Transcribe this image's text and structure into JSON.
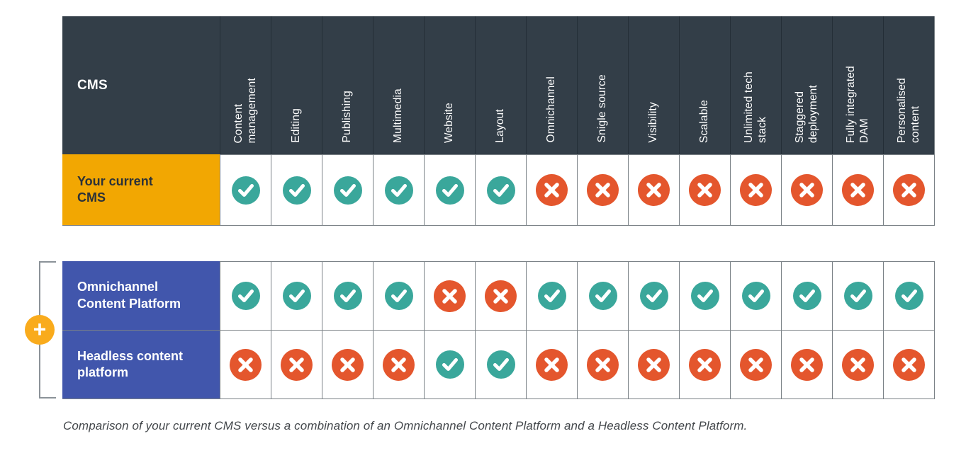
{
  "header": {
    "corner_label": "CMS",
    "columns": [
      "Content\nmanagement",
      "Editing",
      "Publishing",
      "Multimedia",
      "Website",
      "Layout",
      "Omnichannel",
      "Snigle source",
      "Visibility",
      "Scalable",
      "Unlimited tech\nstack",
      "Staggered\ndeployment",
      "Fully integrated\nDAM",
      "Personalised\ncontent"
    ]
  },
  "chart_data": {
    "type": "table",
    "title": "CMS feature comparison matrix",
    "categories": [
      "Content management",
      "Editing",
      "Publishing",
      "Multimedia",
      "Website",
      "Layout",
      "Omnichannel",
      "Snigle source",
      "Visibility",
      "Scalable",
      "Unlimited tech stack",
      "Staggered deployment",
      "Fully integrated DAM",
      "Personalised content"
    ],
    "series": [
      {
        "name": "Your current CMS",
        "values": [
          "yes",
          "yes",
          "yes",
          "yes",
          "yes",
          "yes",
          "no",
          "no",
          "no",
          "no",
          "no",
          "no",
          "no",
          "no"
        ]
      },
      {
        "name": "Omnichannel Content Platform",
        "values": [
          "yes",
          "yes",
          "yes",
          "yes",
          "no",
          "no",
          "yes",
          "yes",
          "yes",
          "yes",
          "yes",
          "yes",
          "yes",
          "yes"
        ]
      },
      {
        "name": "Headless content platform",
        "values": [
          "no",
          "no",
          "no",
          "no",
          "yes",
          "yes",
          "no",
          "no",
          "no",
          "no",
          "no",
          "no",
          "no",
          "no"
        ]
      }
    ]
  },
  "current_table": {
    "rows": [
      {
        "label": "Your current\nCMS",
        "theme": "orange",
        "values": [
          "check",
          "check",
          "check",
          "check",
          "check",
          "check",
          "cross",
          "cross",
          "cross",
          "cross",
          "cross",
          "cross",
          "cross",
          "cross"
        ]
      }
    ]
  },
  "combo_table": {
    "plus_symbol": "+",
    "rows": [
      {
        "label": "Omnichannel\nContent Platform",
        "theme": "blue",
        "values": [
          "check",
          "check",
          "check",
          "check",
          "cross",
          "cross",
          "check",
          "check",
          "check",
          "check",
          "check",
          "check",
          "check",
          "check"
        ]
      },
      {
        "label": "Headless content\nplatform",
        "theme": "blue",
        "values": [
          "cross",
          "cross",
          "cross",
          "cross",
          "check",
          "check",
          "cross",
          "cross",
          "cross",
          "cross",
          "cross",
          "cross",
          "cross",
          "cross"
        ]
      }
    ]
  },
  "caption": "Comparison of your current CMS versus a combination of an Omnichannel Content Platform and a Headless Content Platform.",
  "colors": {
    "header_bg": "#333e48",
    "orange": "#f2a702",
    "blue": "#4156ac",
    "check": "#3aa79b",
    "cross": "#e4562d",
    "plus": "#f9ab1c",
    "grid_border": "#7b8287",
    "header_separator": "#242e37",
    "caption_text": "#43474b"
  }
}
